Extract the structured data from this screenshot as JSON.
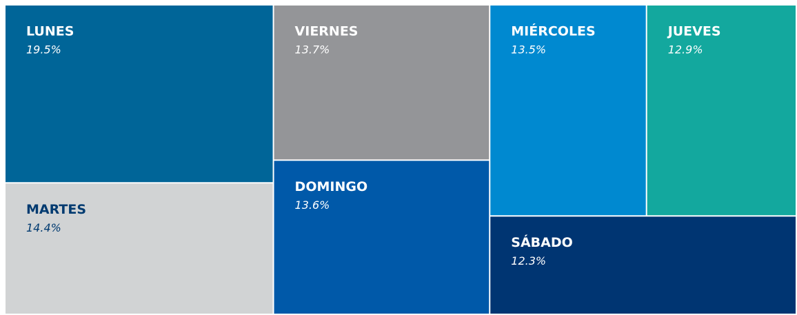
{
  "chart_data": {
    "type": "treemap",
    "categories": [
      "LUNES",
      "MARTES",
      "VIERNES",
      "DOMINGO",
      "MIÉRCOLES",
      "JUEVES",
      "SÁBADO"
    ],
    "values": [
      19.5,
      14.4,
      13.7,
      13.6,
      13.5,
      12.9,
      12.3
    ],
    "value_labels": [
      "19.5%",
      "14.4%",
      "13.7%",
      "13.6%",
      "13.5%",
      "12.9%",
      "12.3%"
    ],
    "colors": [
      "#006598",
      "#d1d3d4",
      "#949598",
      "#0059a9",
      "#0089d0",
      "#13a89e",
      "#003572"
    ],
    "label_colors": [
      "#ffffff",
      "#003a70",
      "#ffffff",
      "#ffffff",
      "#ffffff",
      "#ffffff",
      "#ffffff"
    ]
  }
}
